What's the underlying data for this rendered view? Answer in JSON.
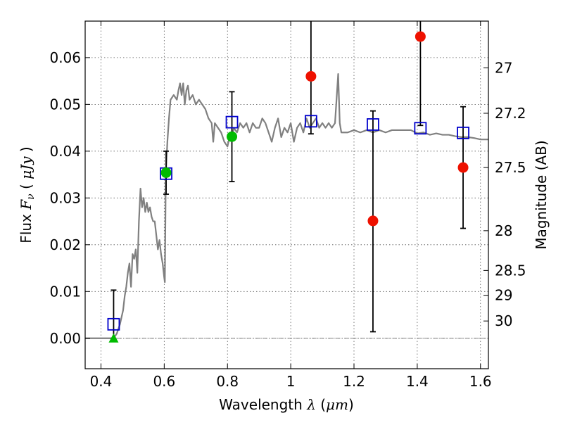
{
  "chart_data": {
    "type": "scatter",
    "xlabel_text": "Wavelength",
    "xlabel_symbol": "λ",
    "xlabel_unit": "μm",
    "ylabel_text": "Flux",
    "ylabel_symbol": "F",
    "ylabel_sub": "ν",
    "ylabel_unit": "μJy",
    "y2label": "Magnitude (AB)",
    "xlim": [
      0.35,
      1.625
    ],
    "ylim": [
      -0.0065,
      0.0678
    ],
    "grid": true,
    "xticks": [
      0.4,
      0.6,
      0.8,
      1.0,
      1.2,
      1.4,
      1.6
    ],
    "xtick_labels": [
      "0.4",
      "0.6",
      "0.8",
      "1",
      "1.2",
      "1.4",
      "1.6"
    ],
    "yticks": [
      0.0,
      0.01,
      0.02,
      0.03,
      0.04,
      0.05,
      0.06
    ],
    "ytick_labels": [
      "0.00",
      "0.01",
      "0.02",
      "0.03",
      "0.04",
      "0.05",
      "0.06"
    ],
    "mag_ticks": [
      {
        "label": "27",
        "flux": 0.0578
      },
      {
        "label": "27.2",
        "flux": 0.0481
      },
      {
        "label": "27.5",
        "flux": 0.0365
      },
      {
        "label": "28",
        "flux": 0.023
      },
      {
        "label": "28.5",
        "flux": 0.0145
      },
      {
        "label": "29",
        "flux": 0.0092
      },
      {
        "label": "30",
        "flux": 0.0037
      }
    ],
    "colors": {
      "model": "#808080",
      "model_photometry": "#0000cc",
      "detection": "#00bb00",
      "nondetection": "#ee1100",
      "errorbar": "#000000",
      "zero_line": "#555555"
    },
    "model_sed": [
      [
        0.35,
        0.0
      ],
      [
        0.43,
        0.0
      ],
      [
        0.44,
        0.0
      ],
      [
        0.45,
        0.001
      ],
      [
        0.46,
        0.003
      ],
      [
        0.47,
        0.006
      ],
      [
        0.475,
        0.009
      ],
      [
        0.48,
        0.011
      ],
      [
        0.485,
        0.014
      ],
      [
        0.49,
        0.016
      ],
      [
        0.495,
        0.011
      ],
      [
        0.5,
        0.018
      ],
      [
        0.505,
        0.017
      ],
      [
        0.51,
        0.019
      ],
      [
        0.515,
        0.014
      ],
      [
        0.52,
        0.025
      ],
      [
        0.525,
        0.032
      ],
      [
        0.53,
        0.028
      ],
      [
        0.535,
        0.03
      ],
      [
        0.54,
        0.027
      ],
      [
        0.545,
        0.029
      ],
      [
        0.55,
        0.027
      ],
      [
        0.555,
        0.028
      ],
      [
        0.56,
        0.026
      ],
      [
        0.565,
        0.025
      ],
      [
        0.57,
        0.025
      ],
      [
        0.575,
        0.022
      ],
      [
        0.58,
        0.019
      ],
      [
        0.585,
        0.021
      ],
      [
        0.59,
        0.018
      ],
      [
        0.595,
        0.016
      ],
      [
        0.6,
        0.013
      ],
      [
        0.602,
        0.012
      ],
      [
        0.605,
        0.035
      ],
      [
        0.61,
        0.042
      ],
      [
        0.615,
        0.047
      ],
      [
        0.62,
        0.051
      ],
      [
        0.63,
        0.052
      ],
      [
        0.64,
        0.051
      ],
      [
        0.645,
        0.053
      ],
      [
        0.65,
        0.0545
      ],
      [
        0.655,
        0.052
      ],
      [
        0.66,
        0.0545
      ],
      [
        0.665,
        0.05
      ],
      [
        0.67,
        0.053
      ],
      [
        0.675,
        0.054
      ],
      [
        0.68,
        0.051
      ],
      [
        0.69,
        0.052
      ],
      [
        0.7,
        0.05
      ],
      [
        0.71,
        0.051
      ],
      [
        0.72,
        0.05
      ],
      [
        0.73,
        0.049
      ],
      [
        0.74,
        0.047
      ],
      [
        0.75,
        0.046
      ],
      [
        0.755,
        0.042
      ],
      [
        0.76,
        0.046
      ],
      [
        0.77,
        0.045
      ],
      [
        0.78,
        0.044
      ],
      [
        0.79,
        0.042
      ],
      [
        0.8,
        0.041
      ],
      [
        0.81,
        0.044
      ],
      [
        0.815,
        0.043
      ],
      [
        0.82,
        0.045
      ],
      [
        0.83,
        0.044
      ],
      [
        0.84,
        0.046
      ],
      [
        0.85,
        0.045
      ],
      [
        0.86,
        0.046
      ],
      [
        0.87,
        0.044
      ],
      [
        0.88,
        0.046
      ],
      [
        0.89,
        0.045
      ],
      [
        0.9,
        0.045
      ],
      [
        0.91,
        0.047
      ],
      [
        0.92,
        0.046
      ],
      [
        0.93,
        0.044
      ],
      [
        0.94,
        0.042
      ],
      [
        0.95,
        0.045
      ],
      [
        0.96,
        0.047
      ],
      [
        0.97,
        0.043
      ],
      [
        0.98,
        0.045
      ],
      [
        0.99,
        0.044
      ],
      [
        1.0,
        0.046
      ],
      [
        1.01,
        0.042
      ],
      [
        1.02,
        0.045
      ],
      [
        1.03,
        0.046
      ],
      [
        1.04,
        0.044
      ],
      [
        1.05,
        0.047
      ],
      [
        1.06,
        0.045
      ],
      [
        1.07,
        0.046
      ],
      [
        1.08,
        0.047
      ],
      [
        1.09,
        0.045
      ],
      [
        1.1,
        0.046
      ],
      [
        1.11,
        0.045
      ],
      [
        1.12,
        0.046
      ],
      [
        1.13,
        0.045
      ],
      [
        1.14,
        0.046
      ],
      [
        1.15,
        0.0565
      ],
      [
        1.155,
        0.046
      ],
      [
        1.16,
        0.044
      ],
      [
        1.18,
        0.044
      ],
      [
        1.2,
        0.0445
      ],
      [
        1.22,
        0.044
      ],
      [
        1.24,
        0.0445
      ],
      [
        1.26,
        0.044
      ],
      [
        1.28,
        0.0445
      ],
      [
        1.3,
        0.044
      ],
      [
        1.32,
        0.0445
      ],
      [
        1.34,
        0.0445
      ],
      [
        1.36,
        0.0445
      ],
      [
        1.38,
        0.0445
      ],
      [
        1.4,
        0.0438
      ],
      [
        1.42,
        0.044
      ],
      [
        1.44,
        0.0435
      ],
      [
        1.46,
        0.0438
      ],
      [
        1.48,
        0.0435
      ],
      [
        1.5,
        0.0435
      ],
      [
        1.52,
        0.0432
      ],
      [
        1.54,
        0.043
      ],
      [
        1.56,
        0.043
      ],
      [
        1.58,
        0.0428
      ],
      [
        1.6,
        0.0425
      ],
      [
        1.625,
        0.0425
      ]
    ],
    "model_photometry": [
      [
        0.44,
        0.003
      ],
      [
        0.606,
        0.0352
      ],
      [
        0.814,
        0.0462
      ],
      [
        1.064,
        0.0464
      ],
      [
        1.26,
        0.0457
      ],
      [
        1.41,
        0.0449
      ],
      [
        1.545,
        0.0439
      ]
    ],
    "detections": [
      {
        "x": 0.606,
        "y": 0.0354,
        "err_lo": 0.0046,
        "err_hi": 0.0046
      },
      {
        "x": 0.814,
        "y": 0.0431,
        "err_lo": 0.0096,
        "err_hi": 0.0096
      }
    ],
    "detection_upper_limits": [
      {
        "x": 0.44,
        "y": 0.0,
        "err_hi": 0.0103
      }
    ],
    "nondetections": [
      {
        "x": 1.064,
        "y": 0.056,
        "err_lo": 0.0123,
        "err_hi": 0.02
      },
      {
        "x": 1.26,
        "y": 0.0251,
        "err_lo": 0.0237,
        "err_hi": 0.0235
      },
      {
        "x": 1.41,
        "y": 0.0645,
        "err_lo": 0.019,
        "err_hi": 0.01
      },
      {
        "x": 1.545,
        "y": 0.0365,
        "err_lo": 0.013,
        "err_hi": 0.013
      }
    ]
  }
}
